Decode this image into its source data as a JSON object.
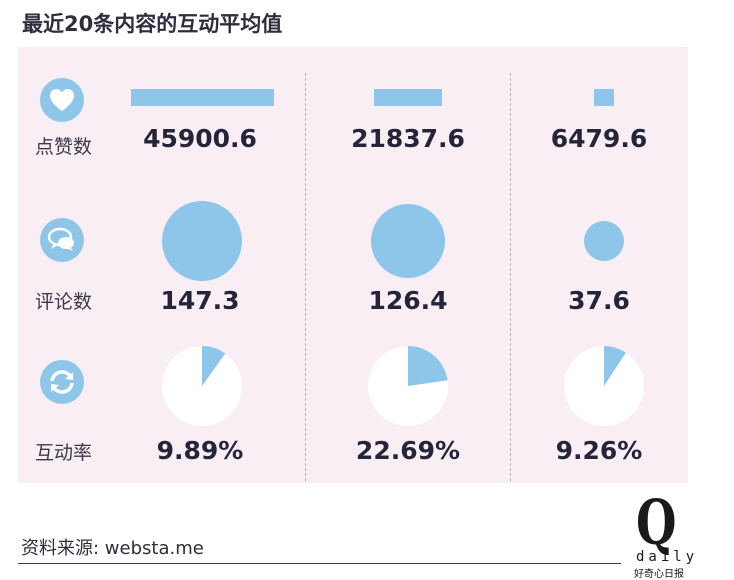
{
  "title": "最近20条内容的互动平均值",
  "source": "资料来源: websta.me",
  "logo": {
    "letter": "Q",
    "word": "daily",
    "tagline": "好奇心日报"
  },
  "icons": {
    "likes": "heart-icon",
    "comments": "speech-bubble-icon",
    "engagement": "refresh-icon"
  },
  "colors": {
    "mark": "#8ec6ea",
    "panel": "#f9eef4",
    "pie_base": "#ffffff"
  },
  "chart_data": {
    "type": "table",
    "rows": [
      {
        "label": "点赞数",
        "display": [
          "45900.6",
          "21837.6",
          "6479.6"
        ],
        "values": [
          45900.6,
          21837.6,
          6479.6
        ],
        "encoding": "bar"
      },
      {
        "label": "评论数",
        "display": [
          "147.3",
          "126.4",
          "37.6"
        ],
        "values": [
          147.3,
          126.4,
          37.6
        ],
        "encoding": "circle-area"
      },
      {
        "label": "互动率",
        "display": [
          "9.89%",
          "22.69%",
          "9.26%"
        ],
        "values": [
          9.89,
          22.69,
          9.26
        ],
        "encoding": "pie"
      }
    ]
  }
}
